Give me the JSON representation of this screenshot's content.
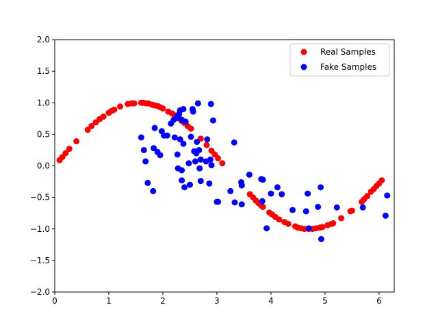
{
  "chart_data": {
    "type": "scatter",
    "title": "",
    "xlabel": "",
    "ylabel": "",
    "xlim": [
      0,
      6.28
    ],
    "ylim": [
      -2.0,
      2.0
    ],
    "x_ticks": [
      {
        "value": 0,
        "label": "0"
      },
      {
        "value": 1,
        "label": "1"
      },
      {
        "value": 2,
        "label": "2"
      },
      {
        "value": 3,
        "label": "3"
      },
      {
        "value": 4,
        "label": "4"
      },
      {
        "value": 5,
        "label": "5"
      },
      {
        "value": 6,
        "label": "6"
      }
    ],
    "y_ticks": [
      {
        "value": -2.0,
        "label": "−2.0"
      },
      {
        "value": -1.5,
        "label": "−1.5"
      },
      {
        "value": -1.0,
        "label": "−1.0"
      },
      {
        "value": -0.5,
        "label": "−0.5"
      },
      {
        "value": 0.0,
        "label": "0.0"
      },
      {
        "value": 0.5,
        "label": "0.5"
      },
      {
        "value": 1.0,
        "label": "1.0"
      },
      {
        "value": 1.5,
        "label": "1.5"
      },
      {
        "value": 2.0,
        "label": "2.0"
      }
    ],
    "grid": false,
    "legend_position": "top-right",
    "series": [
      {
        "name": "Real Samples",
        "color": "#ff0000",
        "points": [
          [
            0.09,
            0.09
          ],
          [
            0.14,
            0.14
          ],
          [
            0.2,
            0.2
          ],
          [
            0.27,
            0.27
          ],
          [
            0.4,
            0.39
          ],
          [
            0.61,
            0.57
          ],
          [
            0.68,
            0.63
          ],
          [
            0.76,
            0.69
          ],
          [
            0.83,
            0.74
          ],
          [
            0.9,
            0.78
          ],
          [
            1.0,
            0.84
          ],
          [
            1.05,
            0.87
          ],
          [
            1.1,
            0.89
          ],
          [
            1.21,
            0.94
          ],
          [
            1.35,
            0.98
          ],
          [
            1.42,
            0.99
          ],
          [
            1.47,
            0.99
          ],
          [
            1.6,
            1.0
          ],
          [
            1.64,
            1.0
          ],
          [
            1.69,
            0.99
          ],
          [
            1.73,
            0.99
          ],
          [
            1.8,
            0.97
          ],
          [
            1.84,
            0.96
          ],
          [
            1.9,
            0.95
          ],
          [
            1.95,
            0.93
          ],
          [
            2.0,
            0.91
          ],
          [
            2.1,
            0.86
          ],
          [
            2.17,
            0.83
          ],
          [
            2.22,
            0.8
          ],
          [
            2.3,
            0.75
          ],
          [
            2.35,
            0.71
          ],
          [
            2.4,
            0.68
          ],
          [
            2.46,
            0.63
          ],
          [
            2.52,
            0.59
          ],
          [
            2.7,
            0.43
          ],
          [
            2.81,
            0.33
          ],
          [
            2.9,
            0.24
          ],
          [
            2.96,
            0.18
          ],
          [
            3.02,
            0.12
          ],
          [
            3.1,
            0.04
          ],
          [
            3.61,
            -0.45
          ],
          [
            3.67,
            -0.5
          ],
          [
            3.72,
            -0.55
          ],
          [
            3.77,
            -0.59
          ],
          [
            3.82,
            -0.63
          ],
          [
            3.85,
            -0.65
          ],
          [
            3.97,
            -0.74
          ],
          [
            4.02,
            -0.77
          ],
          [
            4.08,
            -0.81
          ],
          [
            4.15,
            -0.85
          ],
          [
            4.25,
            -0.89
          ],
          [
            4.32,
            -0.92
          ],
          [
            4.45,
            -0.96
          ],
          [
            4.5,
            -0.98
          ],
          [
            4.56,
            -0.99
          ],
          [
            4.62,
            -1.0
          ],
          [
            4.7,
            -1.0
          ],
          [
            4.77,
            -1.0
          ],
          [
            4.83,
            -0.99
          ],
          [
            4.9,
            -0.98
          ],
          [
            4.95,
            -0.97
          ],
          [
            5.05,
            -0.94
          ],
          [
            5.12,
            -0.92
          ],
          [
            5.15,
            -0.91
          ],
          [
            5.3,
            -0.83
          ],
          [
            5.47,
            -0.72
          ],
          [
            5.5,
            -0.71
          ],
          [
            5.68,
            -0.57
          ],
          [
            5.72,
            -0.53
          ],
          [
            5.78,
            -0.48
          ],
          [
            5.85,
            -0.41
          ],
          [
            5.9,
            -0.37
          ],
          [
            5.95,
            -0.32
          ],
          [
            6.0,
            -0.28
          ],
          [
            6.05,
            -0.23
          ]
        ]
      },
      {
        "name": "Fake Samples",
        "color": "#0000ff",
        "points": [
          [
            1.6,
            0.45
          ],
          [
            1.65,
            0.25
          ],
          [
            1.68,
            0.07
          ],
          [
            1.72,
            -0.27
          ],
          [
            1.82,
            -0.4
          ],
          [
            1.83,
            0.28
          ],
          [
            1.85,
            0.6
          ],
          [
            1.9,
            0.22
          ],
          [
            1.95,
            0.17
          ],
          [
            1.98,
            0.55
          ],
          [
            2.02,
            0.48
          ],
          [
            2.08,
            0.48
          ],
          [
            2.15,
            0.67
          ],
          [
            2.2,
            0.73
          ],
          [
            2.22,
            0.45
          ],
          [
            2.25,
            0.76
          ],
          [
            2.28,
            0.8
          ],
          [
            2.3,
            0.82
          ],
          [
            2.32,
            0.88
          ],
          [
            2.35,
            0.73
          ],
          [
            2.38,
            0.9
          ],
          [
            2.42,
            0.7
          ],
          [
            2.27,
            0.18
          ],
          [
            2.28,
            -0.04
          ],
          [
            2.32,
            0.42
          ],
          [
            2.35,
            -0.07
          ],
          [
            2.35,
            -0.23
          ],
          [
            2.38,
            0.35
          ],
          [
            2.4,
            -0.34
          ],
          [
            2.48,
            0.04
          ],
          [
            2.5,
            -0.3
          ],
          [
            2.52,
            0.46
          ],
          [
            2.55,
            0.9
          ],
          [
            2.56,
            0.86
          ],
          [
            2.58,
            0.23
          ],
          [
            2.6,
            0.07
          ],
          [
            2.62,
            0.2
          ],
          [
            2.63,
            0.38
          ],
          [
            2.65,
            0.99
          ],
          [
            2.67,
            0.25
          ],
          [
            2.68,
            -0.04
          ],
          [
            2.7,
            0.1
          ],
          [
            2.7,
            -0.24
          ],
          [
            2.8,
            0.07
          ],
          [
            2.82,
            0.42
          ],
          [
            2.86,
            -0.28
          ],
          [
            2.88,
            0.1
          ],
          [
            2.89,
            0.98
          ],
          [
            2.9,
            0.01
          ],
          [
            2.93,
            0.72
          ],
          [
            3.0,
            -0.57
          ],
          [
            3.02,
            -0.57
          ],
          [
            3.25,
            -0.4
          ],
          [
            3.32,
            0.37
          ],
          [
            3.33,
            -0.58
          ],
          [
            3.45,
            -0.26
          ],
          [
            3.46,
            -0.31
          ],
          [
            3.46,
            -0.61
          ],
          [
            3.6,
            -0.14
          ],
          [
            3.82,
            -0.21
          ],
          [
            3.85,
            -0.22
          ],
          [
            3.84,
            -0.56
          ],
          [
            3.92,
            -0.99
          ],
          [
            4.0,
            -0.44
          ],
          [
            4.12,
            -0.34
          ],
          [
            4.2,
            -0.45
          ],
          [
            4.4,
            -0.7
          ],
          [
            4.65,
            -0.72
          ],
          [
            4.68,
            -0.44
          ],
          [
            4.7,
            -0.99
          ],
          [
            4.87,
            -0.65
          ],
          [
            4.92,
            -0.34
          ],
          [
            4.93,
            -1.16
          ],
          [
            5.22,
            -0.66
          ],
          [
            5.7,
            -0.66
          ],
          [
            6.12,
            -0.79
          ],
          [
            6.15,
            -0.47
          ]
        ]
      }
    ]
  }
}
